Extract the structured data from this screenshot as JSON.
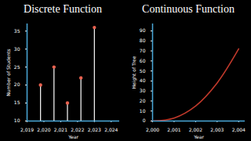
{
  "chart_data": [
    {
      "type": "stem",
      "title": "Discrete Function",
      "x_label": "Year",
      "y_label": "Number of Students",
      "x": [
        2019.8,
        2020.6,
        2021.4,
        2022.2,
        2023.0
      ],
      "values": [
        20,
        25,
        15,
        22,
        36
      ],
      "color": "#e8614f",
      "xlim": [
        2019,
        2024.5
      ],
      "xticks": [
        {
          "value": 2019,
          "label": "2,019"
        },
        {
          "value": 2020,
          "label": "2,020"
        },
        {
          "value": 2021,
          "label": "2,021"
        },
        {
          "value": 2022,
          "label": "2,022"
        },
        {
          "value": 2023,
          "label": "2,023"
        },
        {
          "value": 2024,
          "label": "2,024"
        }
      ],
      "ylim": [
        10,
        37
      ],
      "yticks": [
        10,
        15,
        20,
        25,
        30,
        35
      ]
    },
    {
      "type": "line",
      "title": "Continuous Function",
      "x_label": "Year",
      "y_label": "Height of Tree",
      "x": [
        2000,
        2001,
        2002,
        2003,
        2004
      ],
      "values": [
        0,
        3,
        15,
        38,
        72
      ],
      "color": "#c0392b",
      "xlim": [
        2000,
        2004.3
      ],
      "xticks": [
        {
          "value": 2000,
          "label": "2,000"
        },
        {
          "value": 2001,
          "label": "2,001"
        },
        {
          "value": 2002,
          "label": "2,002"
        },
        {
          "value": 2003,
          "label": "2,003"
        },
        {
          "value": 2004,
          "label": "2,004"
        }
      ],
      "ylim": [
        0,
        97
      ],
      "yticks": [
        0,
        10,
        20,
        30,
        40,
        50,
        60,
        70,
        80,
        90
      ]
    }
  ]
}
